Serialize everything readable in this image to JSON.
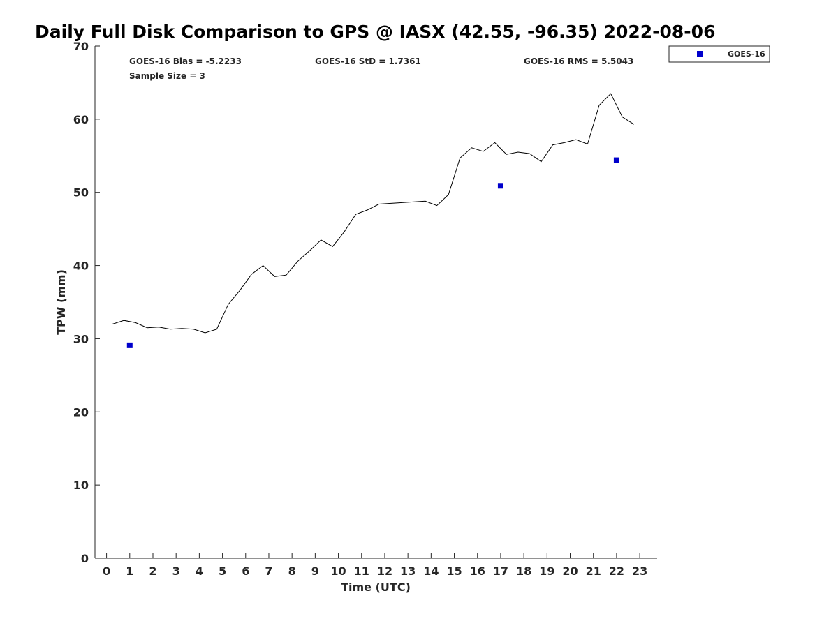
{
  "chart_data": {
    "type": "line+scatter",
    "title": "Daily Full Disk Comparison to GPS @ IASX (42.55, -96.35) 2022-08-06",
    "xlabel": "Time (UTC)",
    "ylabel": "TPW (mm)",
    "xlim": [
      -0.5,
      23.75
    ],
    "ylim": [
      0,
      70
    ],
    "xticks": [
      "0",
      "1",
      "2",
      "3",
      "4",
      "5",
      "6",
      "7",
      "8",
      "9",
      "10",
      "11",
      "12",
      "13",
      "14",
      "15",
      "16",
      "17",
      "18",
      "19",
      "20",
      "21",
      "22",
      "23"
    ],
    "yticks": [
      "0",
      "10",
      "20",
      "30",
      "40",
      "50",
      "60",
      "70"
    ],
    "grid": false,
    "legend_position": "top-right, outside plot",
    "stats": {
      "bias": "GOES-16 Bias = -5.2233",
      "std": "GOES-16 StD = 1.7361",
      "rms": "GOES-16 RMS = 5.5043",
      "sample": "Sample Size = 3"
    },
    "series": [
      {
        "type": "line",
        "color": "#000000",
        "x": [
          0.25,
          0.75,
          1.25,
          1.75,
          2.25,
          2.75,
          3.25,
          3.75,
          4.25,
          4.75,
          5.25,
          5.75,
          6.25,
          6.75,
          7.25,
          7.75,
          8.25,
          8.75,
          9.25,
          9.75,
          10.25,
          10.75,
          11.25,
          11.75,
          13.75,
          14.25,
          14.75,
          15.25,
          15.75,
          16.25,
          16.75,
          17.25,
          17.75,
          18.25,
          18.75,
          19.25,
          19.75,
          20.25,
          20.75,
          21.25,
          21.75,
          22.25,
          22.75
        ],
        "y": [
          32.0,
          32.5,
          32.2,
          31.5,
          31.6,
          31.3,
          31.4,
          31.3,
          30.8,
          31.3,
          34.7,
          36.6,
          38.8,
          40.0,
          38.5,
          38.7,
          40.6,
          42.0,
          43.5,
          42.6,
          44.6,
          47.0,
          47.6,
          48.4,
          48.8,
          48.2,
          49.7,
          54.7,
          56.1,
          55.6,
          56.8,
          55.2,
          55.5,
          55.3,
          54.2,
          56.5,
          56.8,
          57.2,
          56.6,
          61.9,
          63.5,
          60.3,
          59.3
        ]
      },
      {
        "name": "GOES-16",
        "type": "scatter",
        "marker": "square",
        "color": "#0000cc",
        "x": [
          1.0,
          17.0,
          22.0
        ],
        "y": [
          29.1,
          50.9,
          54.4
        ]
      }
    ]
  }
}
